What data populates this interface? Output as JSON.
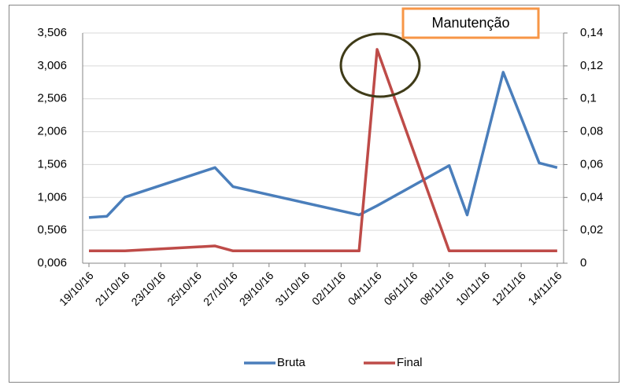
{
  "chart_data": {
    "type": "line",
    "annotation": "Manutenção",
    "x": [
      "19/10/16",
      "20/10/16",
      "21/10/16",
      "26/10/16",
      "27/10/16",
      "03/11/16",
      "04/11/16",
      "08/11/16",
      "09/11/16",
      "11/11/16",
      "13/11/16",
      "14/11/16"
    ],
    "series": [
      {
        "name": "Bruta",
        "color": "#4a7ebb",
        "values": [
          0.7,
          0.72,
          1.01,
          1.46,
          1.17,
          0.74,
          0.88,
          1.49,
          0.74,
          2.91,
          1.53,
          1.46
        ]
      },
      {
        "name": "Final",
        "color": "#be4b48",
        "axis": "y2",
        "values": [
          0.0075,
          0.0075,
          0.0075,
          0.0105,
          0.0075,
          0.0075,
          0.13,
          0.0075,
          0.0075,
          0.0075,
          0.0075,
          0.0075
        ]
      }
    ],
    "xticks": [
      "19/10/16",
      "21/10/16",
      "23/10/16",
      "25/10/16",
      "27/10/16",
      "29/10/16",
      "31/10/16",
      "02/11/16",
      "04/11/16",
      "06/11/16",
      "08/11/16",
      "10/11/16",
      "12/11/16",
      "14/11/16"
    ],
    "ylim": [
      0.006,
      3.506
    ],
    "yticks": [
      {
        "value": 0.006,
        "label": "0,006"
      },
      {
        "value": 0.506,
        "label": "0,506"
      },
      {
        "value": 1.006,
        "label": "1,006"
      },
      {
        "value": 1.506,
        "label": "1,506"
      },
      {
        "value": 2.006,
        "label": "2,006"
      },
      {
        "value": 2.506,
        "label": "2,506"
      },
      {
        "value": 3.006,
        "label": "3,006"
      },
      {
        "value": 3.506,
        "label": "3,506"
      }
    ],
    "y2lim": [
      0,
      0.14
    ],
    "y2ticks": [
      0,
      {
        "value": 0.02,
        "label": "0,02"
      },
      {
        "value": 0.04,
        "label": "0,04"
      },
      {
        "value": 0.06,
        "label": "0,06"
      },
      {
        "value": 0.08,
        "label": "0,08"
      },
      {
        "value": 0.1,
        "label": "0,1"
      },
      {
        "value": 0.12,
        "label": "0,12"
      },
      {
        "value": 0.14,
        "label": "0,14"
      }
    ],
    "grid": true,
    "legend": "bottom"
  }
}
